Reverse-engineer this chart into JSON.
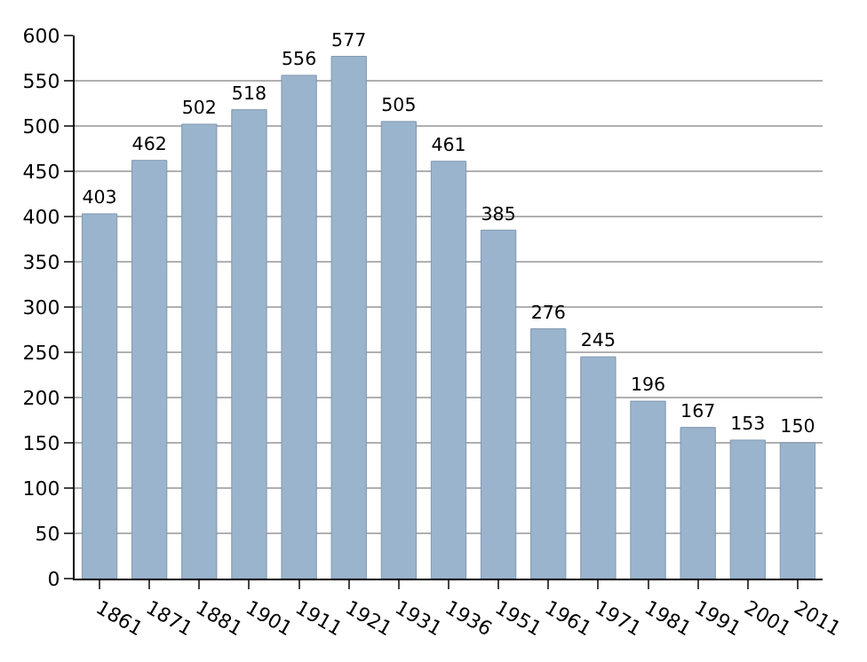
{
  "chart_data": {
    "type": "bar",
    "categories": [
      "1861",
      "1871",
      "1881",
      "1901",
      "1911",
      "1921",
      "1931",
      "1936",
      "1951",
      "1961",
      "1971",
      "1981",
      "1991",
      "2001",
      "2011"
    ],
    "values": [
      403,
      462,
      502,
      518,
      556,
      577,
      505,
      461,
      385,
      276,
      245,
      196,
      167,
      153,
      150
    ],
    "color": "#9bb4cd",
    "ylim": [
      0,
      600
    ],
    "yticks": [
      0,
      50,
      100,
      150,
      200,
      250,
      300,
      350,
      400,
      450,
      500,
      550,
      600
    ],
    "grid": "y",
    "data_labels": true
  }
}
